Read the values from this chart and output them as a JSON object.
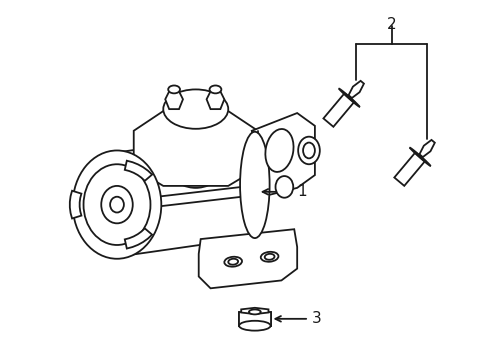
{
  "background_color": "#ffffff",
  "line_color": "#1a1a1a",
  "line_width": 1.3,
  "label_fontsize": 10,
  "figsize": [
    4.89,
    3.6
  ],
  "dpi": 100
}
